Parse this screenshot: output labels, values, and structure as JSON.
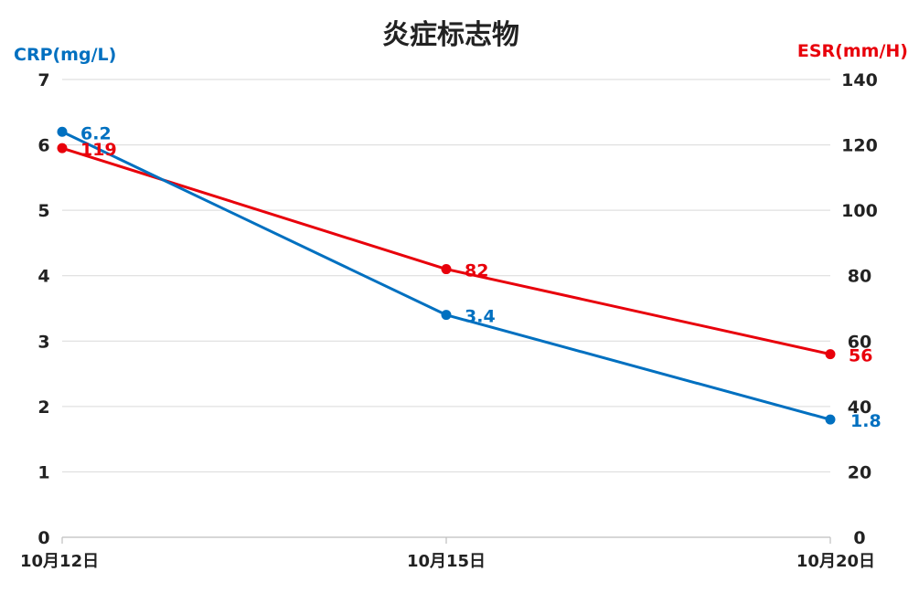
{
  "chart_data": {
    "type": "line",
    "title": "炎症标志物",
    "categories": [
      "10月12日",
      "10月15日",
      "10月20日"
    ],
    "y_left": {
      "label": "CRP(mg/L)",
      "range": [
        0,
        7
      ],
      "ticks": [
        0,
        1,
        2,
        3,
        4,
        5,
        6,
        7
      ]
    },
    "y_right": {
      "label": "ESR(mm/H)",
      "range": [
        0,
        140
      ],
      "ticks": [
        0,
        20,
        40,
        60,
        80,
        100,
        120,
        140
      ]
    },
    "grid": true,
    "series": [
      {
        "name": "CRP",
        "axis": "left",
        "color": "#0070C0",
        "values": [
          6.2,
          3.4,
          1.8
        ],
        "labels": [
          "6.2",
          "3.4",
          "1.8"
        ]
      },
      {
        "name": "ESR",
        "axis": "right",
        "color": "#E8000B",
        "values": [
          119,
          82,
          56
        ],
        "labels": [
          "119",
          "82",
          "56"
        ]
      }
    ]
  }
}
